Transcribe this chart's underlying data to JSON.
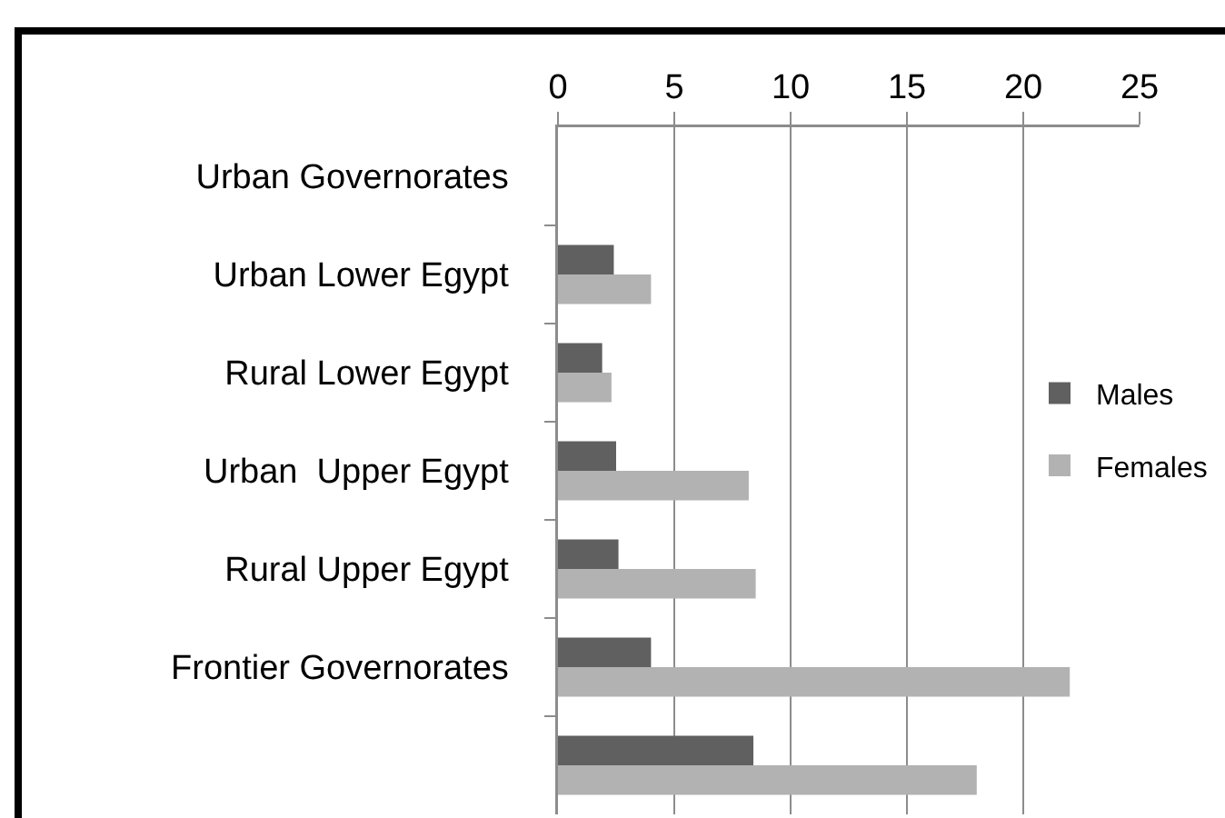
{
  "chart_data": {
    "type": "bar",
    "orientation": "horizontal",
    "categories": [
      "Urban Governorates",
      "Urban Lower Egypt",
      "Rural Lower Egypt",
      "Urban  Upper Egypt",
      "Rural Upper Egypt",
      "Frontier Governorates",
      null
    ],
    "series": [
      {
        "name": "Males",
        "color": "#606060",
        "values": [
          null,
          2.4,
          1.9,
          2.5,
          2.6,
          4.0,
          8.4
        ]
      },
      {
        "name": "Females",
        "color": "#b2b2b2",
        "values": [
          null,
          4.0,
          2.3,
          8.2,
          8.5,
          22.0,
          18.0
        ]
      }
    ],
    "xlim": [
      0,
      25
    ],
    "xticks": [
      0,
      5,
      10,
      15,
      20,
      25
    ],
    "grid": "x",
    "legend": "right"
  }
}
